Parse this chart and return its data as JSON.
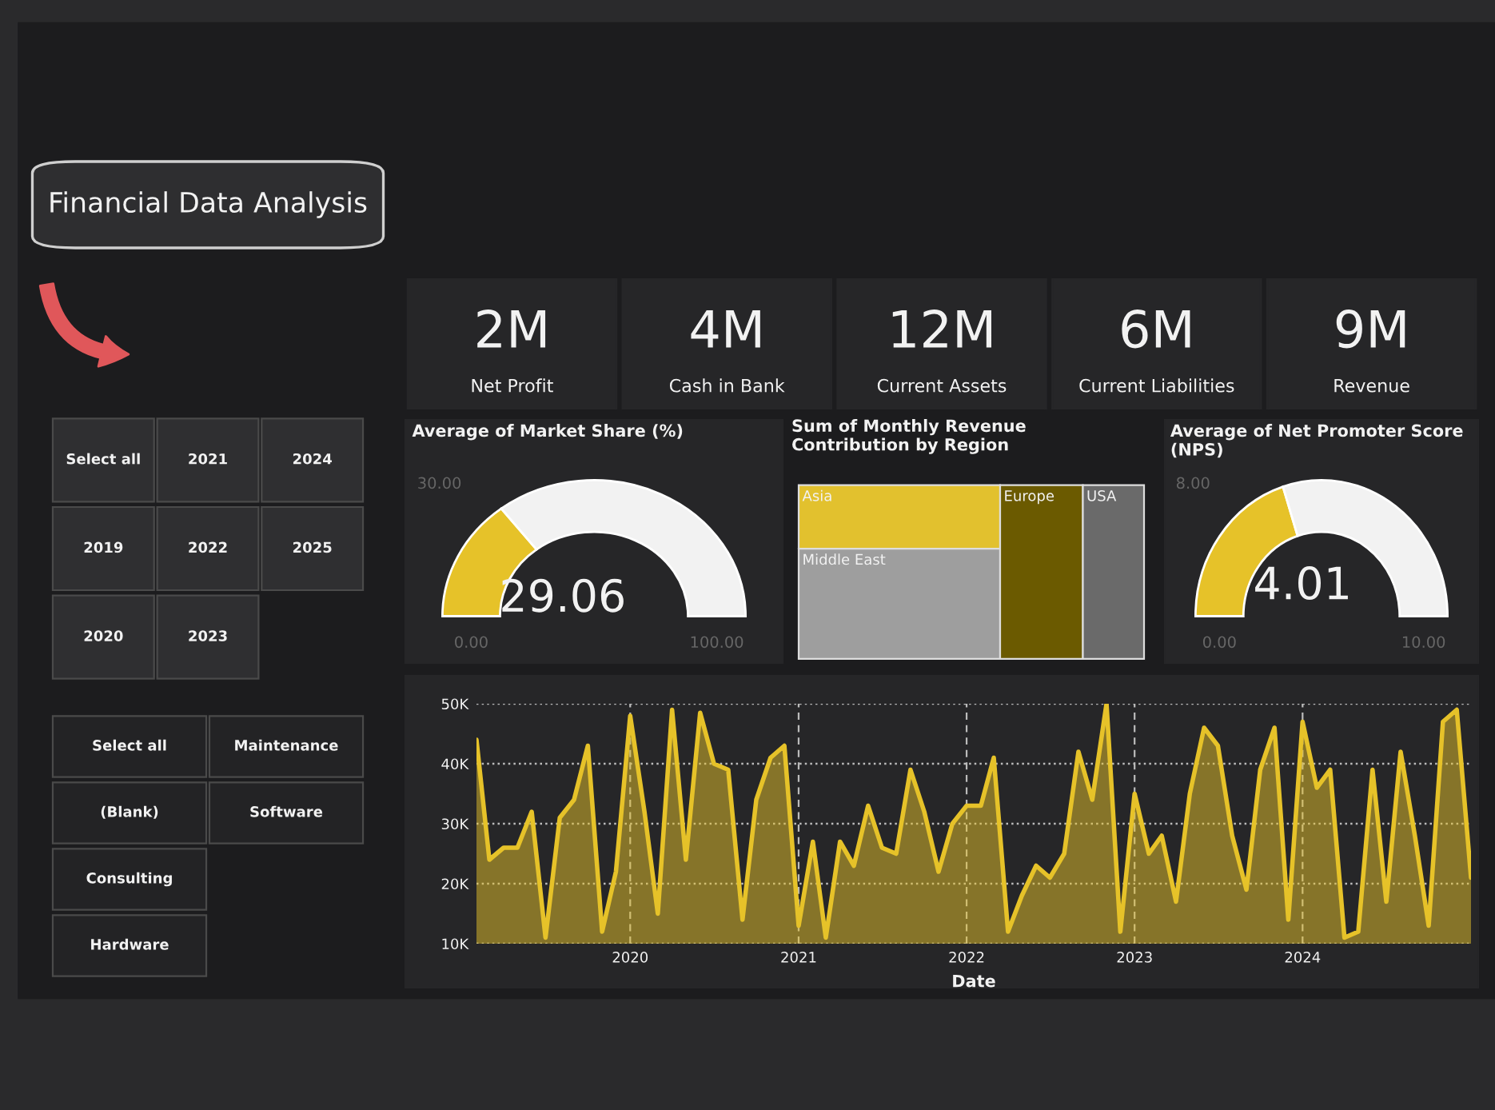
{
  "chart_data": [
    {
      "type": "other",
      "title": "Financial Data Analysis"
    },
    {
      "type": "other",
      "categories": [
        "Select all",
        "2019",
        "2020",
        "2021",
        "2022",
        "2023",
        "2024",
        "2025"
      ]
    },
    {
      "type": "other",
      "categories": [
        "Select all",
        "(Blank)",
        "Consulting",
        "Hardware",
        "Maintenance",
        "Software"
      ]
    },
    {
      "type": "other",
      "categories": [
        "Net Profit",
        "Cash in Bank",
        "Current Assets",
        "Current Liabilities",
        "Revenue"
      ],
      "value_labels": [
        "2M",
        "4M",
        "12M",
        "6M",
        "9M"
      ]
    },
    {
      "type": "donut",
      "title": "Average of Market Share (%)",
      "categories": [
        null,
        null
      ],
      "values": [
        29.06,
        70.94
      ],
      "colors": [
        "#e6c229",
        "#f2f2f2"
      ],
      "value_labels": [
        "29.06",
        null
      ],
      "annotations": [
        "0.00",
        "100.00",
        "30.00"
      ]
    },
    {
      "type": "other",
      "title": "Sum of Monthly Revenue Contribution by Region",
      "categories": [
        "Asia",
        "Middle East",
        "Europe",
        "USA"
      ],
      "colors": [
        "#e2c12e",
        "#9e9e9e",
        "#6b5a00",
        "#6a6a6a"
      ]
    },
    {
      "type": "donut",
      "title": "Average of Net Promoter Score (NPS)",
      "categories": [
        null,
        null
      ],
      "values": [
        4.01,
        5.99
      ],
      "colors": [
        "#e6c229",
        "#f2f2f2"
      ],
      "value_labels": [
        "4.01",
        null
      ],
      "annotations": [
        "0.00",
        "10.00",
        "8.00"
      ]
    },
    {
      "type": "area",
      "xlabel": "Date",
      "grid": true,
      "x": [
        "2019-02",
        "2019-03",
        "2019-04",
        "2019-05",
        "2019-06",
        "2019-07",
        "2019-08",
        "2019-09",
        "2019-10",
        "2019-11",
        "2019-12",
        "2020-01",
        "2020-02",
        "2020-03",
        "2020-04",
        "2020-05",
        "2020-06",
        "2020-07",
        "2020-08",
        "2020-09",
        "2020-10",
        "2020-11",
        "2020-12",
        "2021-01",
        "2021-02",
        "2021-03",
        "2021-04",
        "2021-05",
        "2021-06",
        "2021-07",
        "2021-08",
        "2021-09",
        "2021-10",
        "2021-11",
        "2021-12",
        "2022-01",
        "2022-02",
        "2022-03",
        "2022-04",
        "2022-05",
        "2022-06",
        "2022-07",
        "2022-08",
        "2022-09",
        "2022-10",
        "2022-11",
        "2022-12",
        "2023-01",
        "2023-02",
        "2023-03",
        "2023-04",
        "2023-05",
        "2023-06",
        "2023-07",
        "2023-08",
        "2023-09",
        "2023-10",
        "2023-11",
        "2023-12",
        "2024-01",
        "2024-02",
        "2024-03",
        "2024-04",
        "2024-05",
        "2024-06",
        "2024-07",
        "2024-08",
        "2024-09",
        "2024-10",
        "2024-11",
        "2024-12",
        "2025-01"
      ],
      "series": [
        {
          "color": "#e6c229",
          "values": [
            44000,
            24000,
            26000,
            26000,
            32000,
            11000,
            31000,
            34000,
            43000,
            12000,
            22000,
            48000,
            32000,
            15000,
            49000,
            24000,
            48500,
            40000,
            39000,
            14000,
            34000,
            41000,
            43000,
            13000,
            27000,
            11000,
            27000,
            23000,
            33000,
            26000,
            25000,
            39000,
            32000,
            22000,
            30000,
            33000,
            33000,
            41000,
            12000,
            18000,
            23000,
            21000,
            25000,
            42000,
            34000,
            50000,
            12000,
            35000,
            25000,
            28000,
            17000,
            35000,
            46000,
            43000,
            28000,
            19000,
            39000,
            46000,
            14000,
            47000,
            36000,
            39000,
            11000,
            12000,
            39000,
            17000,
            42000,
            28000,
            13000,
            47000,
            49000,
            21000
          ]
        }
      ],
      "xlim": [
        "2019-02",
        "2025-01"
      ],
      "xticks": [
        "2020",
        "2021",
        "2022",
        "2023",
        "2024"
      ],
      "ylim": [
        10000,
        50000
      ],
      "yticks": [
        {
          "value": 10000,
          "label": "10K"
        },
        {
          "value": 20000,
          "label": "20K"
        },
        {
          "value": 30000,
          "label": "30K"
        },
        {
          "value": 40000,
          "label": "40K"
        },
        {
          "value": 50000,
          "label": "50K"
        }
      ]
    }
  ]
}
